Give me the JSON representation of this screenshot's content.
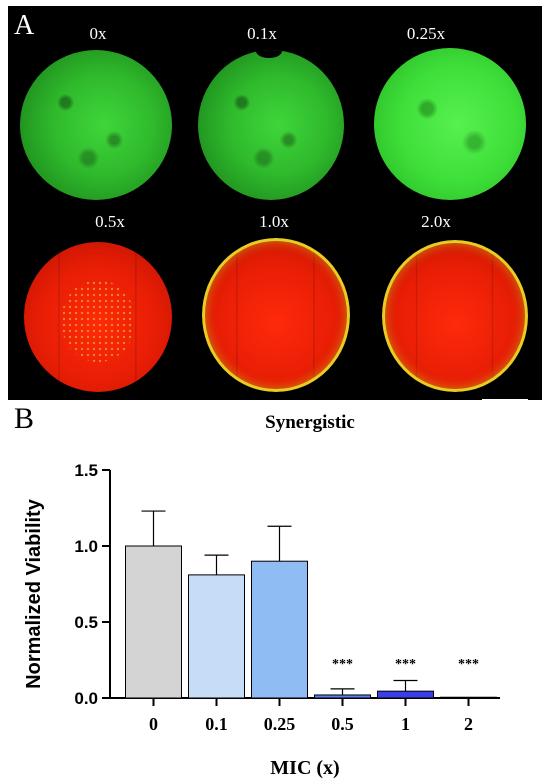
{
  "panel_a": {
    "letter": "A",
    "wells": [
      {
        "label": "0x",
        "stain": "green"
      },
      {
        "label": "0.1x",
        "stain": "green"
      },
      {
        "label": "0.25x",
        "stain": "green-bright"
      },
      {
        "label": "0.5x",
        "stain": "red"
      },
      {
        "label": "1.0x",
        "stain": "red"
      },
      {
        "label": "2.0x",
        "stain": "red"
      }
    ]
  },
  "panel_b": {
    "letter": "B"
  },
  "chart_data": {
    "type": "bar",
    "title": "Synergistic",
    "xlabel": "MIC (x)",
    "ylabel": "Normalized Viability",
    "categories": [
      "0",
      "0.1",
      "0.25",
      "0.5",
      "1",
      "2"
    ],
    "values": [
      1.0,
      0.81,
      0.9,
      0.02,
      0.045,
      0.005
    ],
    "errors": [
      0.23,
      0.13,
      0.23,
      0.04,
      0.07,
      0.0
    ],
    "significance": [
      "",
      "",
      "",
      "***",
      "***",
      "***"
    ],
    "bar_colors": [
      "#d4d4d4",
      "#c7dcf6",
      "#8fbcf3",
      "#5b7ff0",
      "#3a3ee6",
      "#1b1ec8"
    ],
    "yticks": [
      "0.0",
      "0.5",
      "1.0",
      "1.5"
    ],
    "ylim": [
      0,
      1.5
    ]
  }
}
